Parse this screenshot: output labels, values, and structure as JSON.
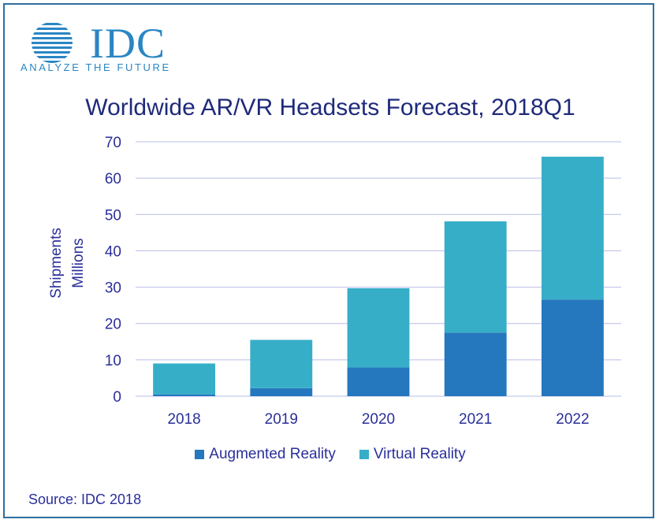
{
  "logo": {
    "word": "IDC",
    "tagline": "ANALYZE THE FUTURE",
    "color": "#2a86c4"
  },
  "source": "Source: IDC 2018",
  "colors": {
    "augmented": "#2577be",
    "virtual": "#37aec8",
    "grid": "#b9bde8",
    "axis_text": "#2a2f9a",
    "title": "#1f2a7a",
    "frame": "#2e6f9e"
  },
  "chart_data": {
    "type": "bar",
    "stacked": true,
    "title": "Worldwide AR/VR Headsets Forecast, 2018Q1",
    "ylabel_lines": [
      "Shipments",
      "Millions"
    ],
    "xlabel": "",
    "categories": [
      "2018",
      "2019",
      "2020",
      "2021",
      "2022"
    ],
    "series": [
      {
        "name": "Augmented Reality",
        "values": [
          0.5,
          2.2,
          7.9,
          17.5,
          26.6
        ]
      },
      {
        "name": "Virtual Reality",
        "values": [
          8.5,
          13.3,
          21.8,
          30.6,
          39.3
        ]
      }
    ],
    "ylim": [
      0,
      70
    ],
    "yticks": [
      0,
      10,
      20,
      30,
      40,
      50,
      60,
      70
    ],
    "grid": true,
    "legend_position": "bottom"
  }
}
